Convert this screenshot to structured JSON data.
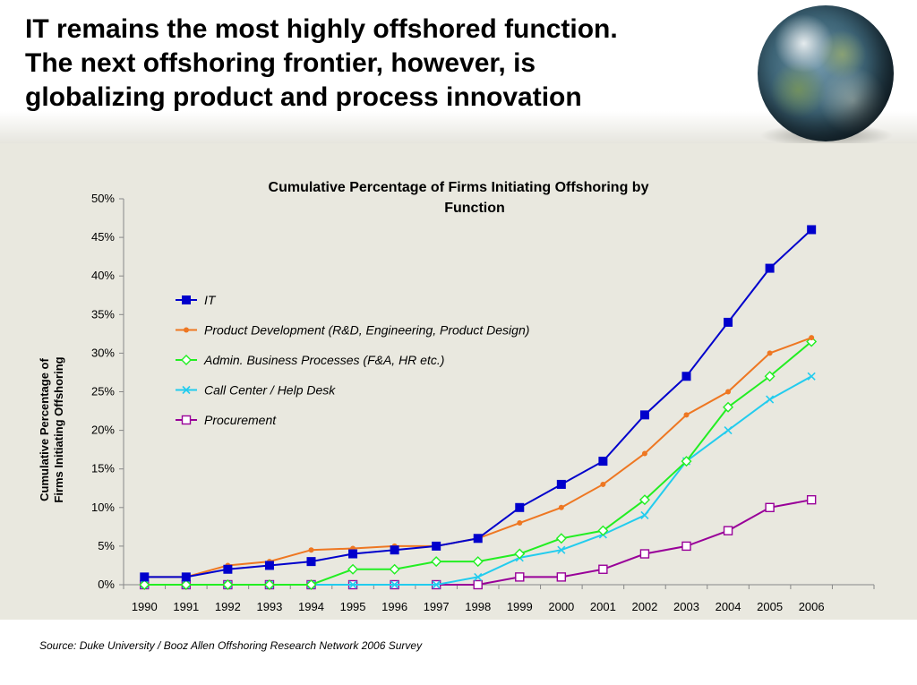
{
  "slide": {
    "title_lines": [
      "IT remains the most highly offshored function.",
      "The next offshoring frontier, however, is",
      "globalizing product and process innovation"
    ],
    "source": "Source:  Duke University / Booz Allen Offshoring Research Network 2006 Survey"
  },
  "chart_data": {
    "type": "line",
    "title": "Cumulative Percentage of Firms Initiating Offshoring by Function",
    "xlabel": "",
    "ylabel": "Cumulative Percentage of Firms Initiating Offshoring",
    "x": [
      "1990",
      "1991",
      "1992",
      "1993",
      "1994",
      "1995",
      "1996",
      "1997",
      "1998",
      "1999",
      "2000",
      "2001",
      "2002",
      "2003",
      "2004",
      "2005",
      "2006"
    ],
    "ylim": [
      0,
      50
    ],
    "yticks": [
      "0%",
      "5%",
      "10%",
      "15%",
      "20%",
      "25%",
      "30%",
      "35%",
      "40%",
      "45%",
      "50%"
    ],
    "grid": false,
    "legend_position": "upper-left inside plot",
    "series": [
      {
        "name": "IT",
        "color": "#0000cc",
        "marker": "square-filled",
        "values": [
          1,
          1,
          2,
          2.5,
          3,
          4,
          4.5,
          5,
          6,
          10,
          13,
          16,
          22,
          27,
          34,
          41,
          46
        ]
      },
      {
        "name": "Product Development (R&D, Engineering, Product Design)",
        "color": "#ee7722",
        "marker": "dot",
        "values": [
          1,
          1,
          2.5,
          3,
          4.5,
          4.7,
          5,
          5,
          6,
          8,
          10,
          13,
          17,
          22,
          25,
          30,
          32
        ]
      },
      {
        "name": "Admin. Business Processes (F&A, HR etc.)",
        "color": "#22ee22",
        "marker": "diamond-open",
        "values": [
          0,
          0,
          0,
          0,
          0,
          2,
          2,
          3,
          3,
          4,
          6,
          7,
          11,
          16,
          23,
          27,
          31.5
        ]
      },
      {
        "name": "Call Center / Help Desk",
        "color": "#22ccee",
        "marker": "x",
        "values": [
          0,
          0,
          0,
          0,
          0,
          0,
          0,
          0,
          1,
          3.5,
          4.5,
          6.5,
          9,
          16,
          20,
          24,
          27
        ]
      },
      {
        "name": "Procurement",
        "color": "#990099",
        "marker": "square-open",
        "values": [
          0,
          0,
          0,
          0,
          0,
          0,
          0,
          0,
          0,
          1,
          1,
          2,
          4,
          5,
          7,
          10,
          11
        ]
      }
    ]
  }
}
